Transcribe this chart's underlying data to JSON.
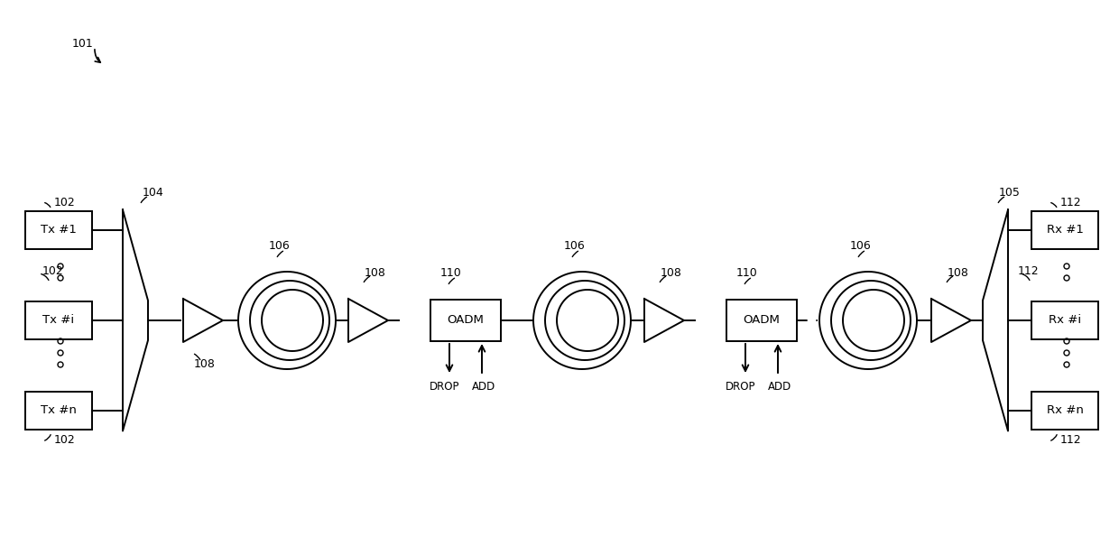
{
  "bg_color": "#ffffff",
  "line_color": "#000000",
  "label_101": "101",
  "label_102": "102",
  "label_104": "104",
  "label_105": "105",
  "label_106": "106",
  "label_108": "108",
  "label_110": "110",
  "label_112": "112",
  "tx_labels": [
    "Tx #1",
    "Tx #i",
    "Tx #n"
  ],
  "rx_labels": [
    "Rx #1",
    "Rx #i",
    "Rx #n"
  ],
  "oadm_label": "OADM",
  "drop_label": "DROP",
  "add_label": "ADD",
  "figure_width": 12.4,
  "figure_height": 5.95,
  "dpi": 100
}
